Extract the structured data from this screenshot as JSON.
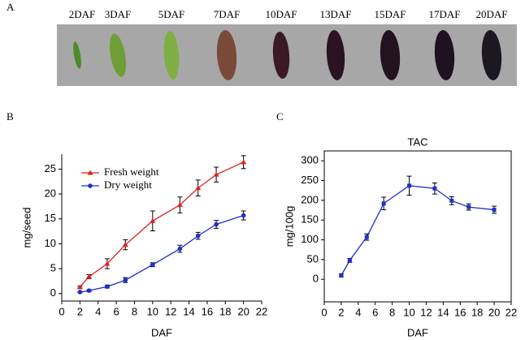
{
  "panel_a": {
    "label": "A",
    "stages": [
      "2DAF",
      "3DAF",
      "5DAF",
      "7DAF",
      "10DAF",
      "13DAF",
      "15DAF",
      "17DAF",
      "20DAF"
    ]
  },
  "chart_data": [
    {
      "type": "line",
      "panel": "B",
      "ylabel": "mg/seed",
      "xlabel": "DAF",
      "x": [
        2,
        3,
        5,
        7,
        10,
        13,
        15,
        17,
        20
      ],
      "series": [
        {
          "name": "Fresh weight",
          "color": "#e0201c",
          "marker": "triangle",
          "values": [
            1.3,
            3.4,
            6.0,
            9.8,
            14.6,
            17.8,
            21.2,
            23.9,
            26.4
          ],
          "errors": [
            0.2,
            0.4,
            1.0,
            1.0,
            2.0,
            1.6,
            1.6,
            1.5,
            1.3
          ]
        },
        {
          "name": "Dry weight",
          "color": "#1f2fcf",
          "marker": "circle",
          "values": [
            0.3,
            0.6,
            1.4,
            2.7,
            5.8,
            9.0,
            11.6,
            13.9,
            15.7
          ],
          "errors": [
            0.1,
            0.2,
            0.3,
            0.5,
            0.4,
            0.7,
            0.7,
            0.8,
            0.9
          ]
        }
      ],
      "xlim": [
        0,
        22
      ],
      "xticks": [
        0,
        2,
        4,
        6,
        8,
        10,
        12,
        14,
        16,
        18,
        20,
        22
      ],
      "ylim": [
        -1.5,
        28
      ],
      "yticks": [
        0,
        5,
        10,
        15,
        20,
        25
      ],
      "legend": "upper left"
    },
    {
      "type": "line",
      "panel": "C",
      "title": "TAC",
      "ylabel": "mg/100g",
      "xlabel": "DAF",
      "x": [
        2,
        3,
        5,
        7,
        10,
        13,
        15,
        17,
        20
      ],
      "series": [
        {
          "color": "#1f2fcf",
          "marker": "square",
          "values": [
            10,
            48,
            107,
            192,
            237,
            230,
            199,
            183,
            176
          ],
          "errors": [
            4,
            5,
            8,
            16,
            24,
            14,
            10,
            8,
            9
          ]
        }
      ],
      "xlim": [
        0,
        22
      ],
      "xticks": [
        0,
        2,
        4,
        6,
        8,
        10,
        12,
        14,
        16,
        18,
        20,
        22
      ],
      "ylim": [
        -57,
        325
      ],
      "yticks": [
        0,
        50,
        100,
        150,
        200,
        250,
        300
      ]
    }
  ]
}
